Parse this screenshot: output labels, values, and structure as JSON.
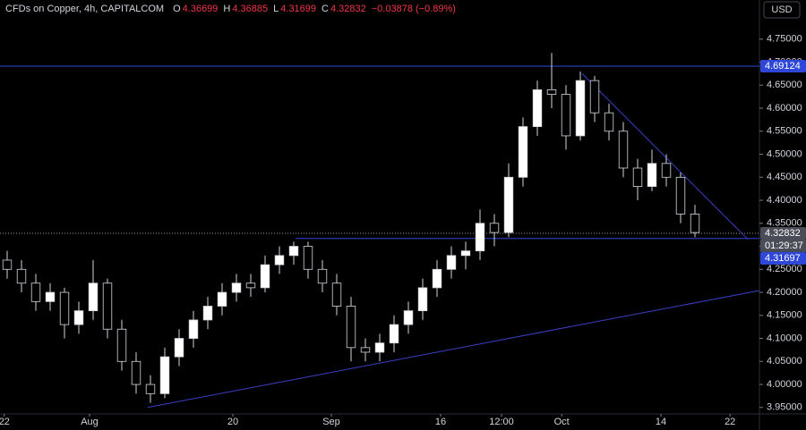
{
  "chart_data": {
    "type": "candlestick",
    "title": "CFDs on Copper, 4h, CAPITALCOM",
    "header_values": [
      {
        "key": "O",
        "value": 4.36699
      },
      {
        "key": "H",
        "value": 4.36885
      },
      {
        "key": "L",
        "value": 4.31699
      },
      {
        "key": "C",
        "value": 4.32832
      }
    ],
    "change_text": "−0.03878 (−0.89%)",
    "currency_button": "USD",
    "up_color": "#ffffff",
    "down_color": "#000000",
    "wick_color": "#d1d4dc",
    "line_color": "#3a3fc4",
    "xlim": [
      0,
      106
    ],
    "ylim": [
      3.936,
      4.835
    ],
    "xticks": [
      {
        "value": 0.6,
        "label": "22"
      },
      {
        "value": 12.5,
        "label": "Aug"
      },
      {
        "value": 32.5,
        "label": "20"
      },
      {
        "value": 46.25,
        "label": "Sep"
      },
      {
        "value": 61.5,
        "label": "16"
      },
      {
        "value": 70,
        "label": "12:00"
      },
      {
        "value": 78.4,
        "label": "Oct"
      },
      {
        "value": 92.25,
        "label": "14"
      },
      {
        "value": 101.9,
        "label": "22"
      }
    ],
    "yticks": [
      {
        "value": 4.75,
        "label": "4.75000"
      },
      {
        "value": 4.7,
        "label": "4.70000"
      },
      {
        "value": 4.65,
        "label": "4.65000"
      },
      {
        "value": 4.6,
        "label": "4.60000"
      },
      {
        "value": 4.55,
        "label": "4.55000"
      },
      {
        "value": 4.5,
        "label": "4.50000"
      },
      {
        "value": 4.45,
        "label": "4.45000"
      },
      {
        "value": 4.4,
        "label": "4.40000"
      },
      {
        "value": 4.35,
        "label": "4.35000"
      },
      {
        "value": 4.3,
        "label": "4.30000"
      },
      {
        "value": 4.25,
        "label": "4.25000"
      },
      {
        "value": 4.2,
        "label": "4.20000"
      },
      {
        "value": 4.15,
        "label": "4.15000"
      },
      {
        "value": 4.1,
        "label": "4.10000"
      },
      {
        "value": 4.05,
        "label": "4.05000"
      },
      {
        "value": 4.0,
        "label": "4.00000"
      },
      {
        "value": 3.95,
        "label": "3.95000"
      }
    ],
    "x": [
      1,
      3,
      5,
      7,
      9,
      11,
      13,
      15,
      17,
      19,
      21,
      23,
      25,
      27,
      29,
      31,
      33,
      35,
      37,
      39,
      41,
      43,
      45,
      47,
      49,
      51,
      53,
      55,
      57,
      59,
      61,
      63,
      65,
      67,
      69,
      71,
      73,
      75,
      77,
      79,
      81,
      83,
      85,
      87,
      89,
      91,
      93,
      95,
      97
    ],
    "open": [
      4.27,
      4.25,
      4.22,
      4.18,
      4.2,
      4.13,
      4.16,
      4.22,
      4.12,
      4.05,
      4.0,
      3.98,
      4.06,
      4.1,
      4.14,
      4.17,
      4.2,
      4.22,
      4.21,
      4.26,
      4.28,
      4.3,
      4.25,
      4.22,
      4.17,
      4.08,
      4.07,
      4.09,
      4.13,
      4.16,
      4.21,
      4.25,
      4.28,
      4.29,
      4.35,
      4.33,
      4.45,
      4.56,
      4.64,
      4.63,
      4.54,
      4.66,
      4.59,
      4.55,
      4.47,
      4.43,
      4.48,
      4.45,
      4.37
    ],
    "high": [
      4.29,
      4.27,
      4.24,
      4.22,
      4.21,
      4.18,
      4.27,
      4.23,
      4.14,
      4.07,
      4.02,
      4.08,
      4.12,
      4.16,
      4.19,
      4.22,
      4.24,
      4.24,
      4.28,
      4.3,
      4.31,
      4.31,
      4.27,
      4.24,
      4.19,
      4.1,
      4.11,
      4.15,
      4.18,
      4.23,
      4.27,
      4.3,
      4.31,
      4.38,
      4.37,
      4.48,
      4.58,
      4.66,
      4.72,
      4.65,
      4.68,
      4.67,
      4.61,
      4.57,
      4.49,
      4.51,
      4.5,
      4.46,
      4.39
    ],
    "low": [
      4.23,
      4.2,
      4.16,
      4.16,
      4.1,
      4.11,
      4.14,
      4.1,
      4.03,
      3.98,
      3.96,
      3.97,
      4.04,
      4.08,
      4.12,
      4.15,
      4.18,
      4.19,
      4.2,
      4.24,
      4.26,
      4.23,
      4.2,
      4.15,
      4.05,
      4.05,
      4.05,
      4.07,
      4.11,
      4.14,
      4.19,
      4.23,
      4.25,
      4.27,
      4.3,
      4.32,
      4.43,
      4.54,
      4.6,
      4.51,
      4.53,
      4.57,
      4.53,
      4.45,
      4.4,
      4.42,
      4.43,
      4.35,
      4.32
    ],
    "close": [
      4.25,
      4.22,
      4.18,
      4.2,
      4.13,
      4.16,
      4.22,
      4.12,
      4.05,
      4.0,
      3.98,
      4.06,
      4.1,
      4.14,
      4.17,
      4.2,
      4.22,
      4.21,
      4.26,
      4.28,
      4.3,
      4.25,
      4.22,
      4.17,
      4.08,
      4.07,
      4.09,
      4.13,
      4.16,
      4.21,
      4.25,
      4.28,
      4.29,
      4.35,
      4.33,
      4.45,
      4.56,
      4.64,
      4.63,
      4.54,
      4.66,
      4.59,
      4.55,
      4.47,
      4.43,
      4.48,
      4.45,
      4.37,
      4.33
    ],
    "levels": [
      {
        "value": 4.69124,
        "start_x": 0,
        "color": "#2f47d8"
      },
      {
        "value": 4.31697,
        "start_x": 41.25,
        "color": "#2f47d8"
      }
    ],
    "last_price": 4.32832,
    "countdown": "01:29:37",
    "trendlines": [
      {
        "x": [
          81.25,
          104.4
        ],
        "y": [
          4.675,
          4.315
        ]
      },
      {
        "x": [
          20.6,
          106
        ],
        "y": [
          3.95,
          4.204
        ]
      }
    ]
  }
}
